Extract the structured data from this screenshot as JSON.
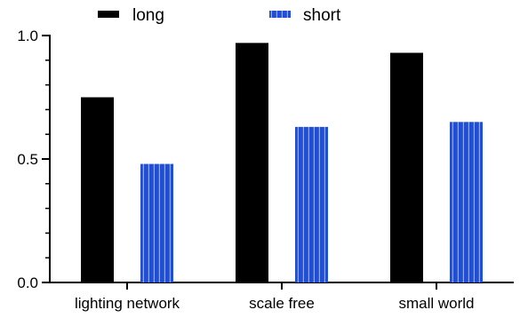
{
  "chart_data": {
    "type": "bar",
    "categories": [
      "lighting network",
      "scale free",
      "small world"
    ],
    "series": [
      {
        "name": "long",
        "values": [
          0.75,
          0.97,
          0.93
        ],
        "color": "#000000",
        "pattern": "solid"
      },
      {
        "name": "short",
        "values": [
          0.48,
          0.63,
          0.65
        ],
        "color": "#1f4fd6",
        "pattern": "vertical-stripes",
        "stripe_color": "#d9a441"
      }
    ],
    "title": "",
    "xlabel": "",
    "ylabel": "",
    "ylim": [
      0,
      1.0
    ],
    "yticks": [
      "0.0",
      "0.5",
      "1.0"
    ],
    "grid": false,
    "legend_position": "top"
  }
}
